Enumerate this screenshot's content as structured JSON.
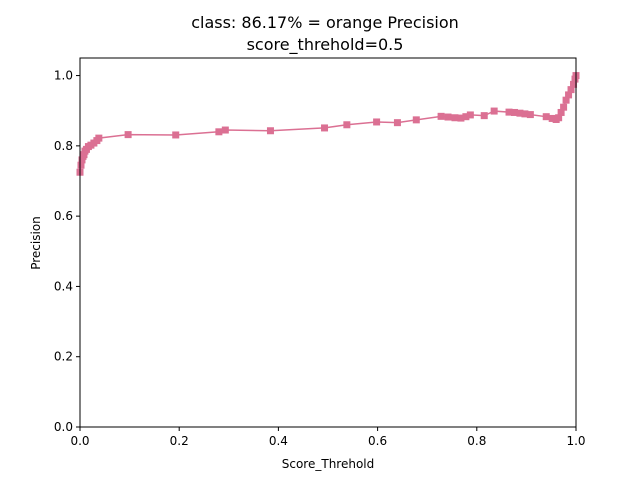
{
  "chart_data": {
    "type": "line",
    "title_line1": "class: 86.17% = orange Precision",
    "title_line2": "score_threhold=0.5",
    "xlabel": "Score_Threhold",
    "ylabel": "Precision",
    "xlim": [
      0.0,
      1.0
    ],
    "ylim": [
      0.0,
      1.05
    ],
    "x_ticks": [
      "0.0",
      "0.2",
      "0.4",
      "0.6",
      "0.8",
      "1.0"
    ],
    "y_ticks": [
      "0.0",
      "0.2",
      "0.4",
      "0.6",
      "0.8",
      "1.0"
    ],
    "grid": false,
    "marker": "square",
    "color": "#db7093",
    "series": [
      {
        "x": [
          0.0,
          0.002,
          0.004,
          0.006,
          0.008,
          0.01,
          0.013,
          0.017,
          0.022,
          0.028,
          0.034,
          0.038,
          0.097,
          0.193,
          0.28,
          0.293,
          0.384,
          0.493,
          0.538,
          0.598,
          0.64,
          0.678,
          0.728,
          0.742,
          0.756,
          0.768,
          0.778,
          0.787,
          0.815,
          0.835,
          0.865,
          0.876,
          0.887,
          0.897,
          0.908,
          0.94,
          0.952,
          0.96,
          0.965,
          0.97,
          0.975,
          0.98,
          0.985,
          0.99,
          0.995,
          0.998,
          1.0
        ],
        "y": [
          0.725,
          0.745,
          0.76,
          0.77,
          0.775,
          0.785,
          0.79,
          0.798,
          0.802,
          0.808,
          0.815,
          0.822,
          0.832,
          0.831,
          0.84,
          0.845,
          0.843,
          0.851,
          0.86,
          0.868,
          0.866,
          0.874,
          0.884,
          0.882,
          0.88,
          0.879,
          0.883,
          0.888,
          0.886,
          0.899,
          0.896,
          0.895,
          0.893,
          0.891,
          0.889,
          0.883,
          0.878,
          0.875,
          0.88,
          0.895,
          0.91,
          0.93,
          0.945,
          0.96,
          0.975,
          0.99,
          1.0
        ]
      }
    ]
  }
}
